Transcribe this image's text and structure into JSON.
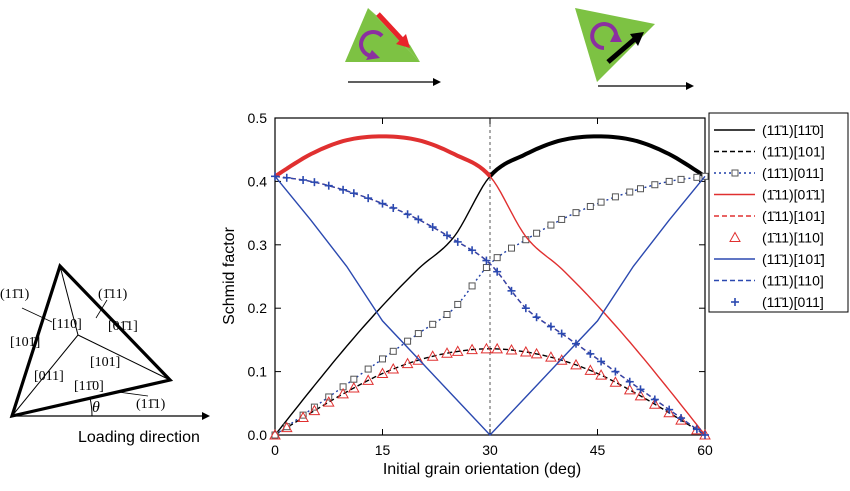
{
  "chart_data": {
    "type": "line",
    "xlabel": "Initial grain orientation (deg)",
    "ylabel": "Schmid factor",
    "xlim": [
      0,
      60
    ],
    "ylim": [
      0,
      0.5
    ],
    "x_ticks": [
      "0",
      "15",
      "30",
      "45",
      "60"
    ],
    "y_ticks": [
      "0.0",
      "0.1",
      "0.2",
      "0.3",
      "0.4",
      "0.5"
    ],
    "vertical_reference_x": 30,
    "legend_position": "right",
    "series": [
      {
        "name": "(11̄1)[11̄0]",
        "style": "solid",
        "color": "#000000",
        "marker": "none",
        "x": [
          0,
          5,
          10,
          15,
          20,
          25,
          30,
          35,
          40,
          45,
          50,
          55,
          60
        ],
        "values": [
          0,
          0.071,
          0.14,
          0.204,
          0.262,
          0.313,
          0.408,
          0.443,
          0.465,
          0.471,
          0.465,
          0.443,
          0.408
        ],
        "bold_range": [
          30,
          60
        ]
      },
      {
        "name": "(11̄1)[101]",
        "style": "dashed",
        "color": "#000000",
        "marker": "none",
        "x": [
          0,
          5,
          10,
          15,
          20,
          25,
          30,
          35,
          40,
          45,
          50,
          55,
          60
        ],
        "values": [
          0,
          0.035,
          0.068,
          0.097,
          0.118,
          0.131,
          0.136,
          0.131,
          0.118,
          0.097,
          0.068,
          0.035,
          0
        ]
      },
      {
        "name": "(11̄1)[011]",
        "style": "dotted",
        "color": "#1f3fa8",
        "marker": "square",
        "x": [
          0,
          5,
          10,
          15,
          20,
          25,
          30,
          35,
          40,
          45,
          50,
          55,
          60
        ],
        "values": [
          0,
          0.04,
          0.08,
          0.12,
          0.16,
          0.2,
          0.27,
          0.308,
          0.34,
          0.365,
          0.385,
          0.4,
          0.408
        ]
      },
      {
        "name": "(1̄11)[01̄1]",
        "style": "solid",
        "color": "#e03030",
        "marker": "none",
        "x": [
          0,
          5,
          10,
          15,
          20,
          25,
          30,
          35,
          40,
          45,
          50,
          55,
          60
        ],
        "values": [
          0.408,
          0.443,
          0.465,
          0.471,
          0.465,
          0.443,
          0.408,
          0.313,
          0.262,
          0.204,
          0.14,
          0.071,
          0
        ],
        "bold_range": [
          0,
          30
        ]
      },
      {
        "name": "(1̄11)[101]",
        "style": "dashed",
        "color": "#e03030",
        "marker": "none",
        "x": [
          0,
          5,
          10,
          15,
          20,
          25,
          30,
          35,
          40,
          45,
          50,
          55,
          60
        ],
        "values": [
          0.408,
          0.4,
          0.385,
          0.365,
          0.34,
          0.308,
          0.27,
          0.2,
          0.16,
          0.12,
          0.08,
          0.04,
          0
        ]
      },
      {
        "name": "(1̄11)[110]",
        "style": "none",
        "color": "#e03030",
        "marker": "triangle",
        "x": [
          0,
          5,
          10,
          15,
          20,
          25,
          30,
          35,
          40,
          45,
          50,
          55,
          60
        ],
        "values": [
          0,
          0.035,
          0.068,
          0.097,
          0.118,
          0.131,
          0.136,
          0.131,
          0.118,
          0.097,
          0.068,
          0.035,
          0
        ]
      },
      {
        "name": "(11̄1)[101̄]",
        "style": "solid",
        "color": "#2b49b0",
        "marker": "none",
        "x": [
          0,
          5,
          10,
          15,
          20,
          25,
          30,
          35,
          40,
          45,
          50,
          55,
          60
        ],
        "values": [
          0.408,
          0.339,
          0.266,
          0.18,
          0.12,
          0.06,
          0,
          0.06,
          0.12,
          0.18,
          0.266,
          0.339,
          0.408
        ]
      },
      {
        "name": "(11̄1)[110]",
        "style": "dashed",
        "color": "#2b49b0",
        "marker": "none",
        "x": [
          0,
          5,
          10,
          15,
          20,
          25,
          30,
          35,
          40,
          45,
          50,
          55,
          60
        ],
        "values": [
          0.408,
          0.4,
          0.385,
          0.365,
          0.34,
          0.308,
          0.27,
          0.2,
          0.16,
          0.12,
          0.08,
          0.04,
          0
        ]
      },
      {
        "name": "(11̄1)[011]",
        "style": "none",
        "color": "#2b49b0",
        "marker": "plus",
        "x": [
          0,
          5,
          10,
          15,
          20,
          25,
          30,
          35,
          40,
          45,
          50,
          55,
          60
        ],
        "values": [
          0.408,
          0.4,
          0.385,
          0.365,
          0.34,
          0.308,
          0.27,
          0.2,
          0.16,
          0.12,
          0.08,
          0.04,
          0
        ]
      }
    ]
  },
  "triangle_labels": {
    "plane_top": "(1̄11)",
    "plane_left": "(11̄1)",
    "dir_110": "[110]",
    "dir_011_bar": "[01̄1]",
    "dir_101_bar": "[101̄]",
    "dir_101": "[101]",
    "dir_011": "[011]",
    "dir_1_10": "[11̄0]",
    "plane_bottom": "(11̄1)",
    "theta": "θ",
    "loading": "Loading direction"
  },
  "colors": {
    "triangle_fill": "#7dc243",
    "rotate_arrow": "#8b2fa0",
    "red_arrow": "#e8242a",
    "black_arrow": "#000000"
  }
}
